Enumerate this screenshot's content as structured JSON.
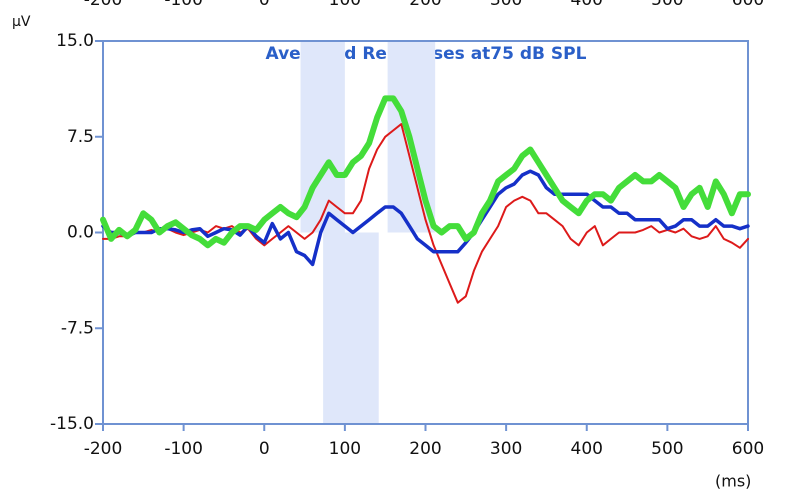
{
  "chart_data": {
    "type": "line",
    "title": "Averaged Responses at75 dB SPL",
    "y_unit": "μV",
    "x_unit": "(ms)",
    "x": [
      -200,
      -190,
      -180,
      -170,
      -160,
      -150,
      -140,
      -130,
      -120,
      -110,
      -100,
      -90,
      -80,
      -70,
      -60,
      -50,
      -40,
      -30,
      -20,
      -10,
      0,
      10,
      20,
      30,
      40,
      50,
      60,
      70,
      80,
      90,
      100,
      110,
      120,
      130,
      140,
      150,
      160,
      170,
      180,
      190,
      200,
      210,
      220,
      230,
      240,
      250,
      260,
      270,
      280,
      290,
      300,
      310,
      320,
      330,
      340,
      350,
      360,
      370,
      380,
      390,
      400,
      410,
      420,
      430,
      440,
      450,
      460,
      470,
      480,
      490,
      500,
      510,
      520,
      530,
      540,
      550,
      560,
      570,
      580,
      590,
      600
    ],
    "series": [
      {
        "color": "#dd1a1a",
        "width": 2,
        "values": [
          -0.5,
          -0.5,
          -0.3,
          -0.3,
          0,
          0,
          0.2,
          0,
          0.3,
          0,
          -0.2,
          0,
          0.2,
          0,
          0.5,
          0.3,
          0.5,
          0,
          0.3,
          -0.5,
          -1.0,
          -0.5,
          0,
          0.5,
          0,
          -0.5,
          0,
          1.0,
          2.5,
          2.0,
          1.5,
          1.5,
          2.5,
          5.0,
          6.5,
          7.5,
          8.0,
          8.5,
          6.0,
          3.5,
          1.0,
          -1.0,
          -2.5,
          -4.0,
          -5.5,
          -5.0,
          -3.0,
          -1.5,
          -0.5,
          0.5,
          2.0,
          2.5,
          2.8,
          2.5,
          1.5,
          1.5,
          1.0,
          0.5,
          -0.5,
          -1.0,
          0,
          0.5,
          -1.0,
          -0.5,
          0,
          0,
          0,
          0.2,
          0.5,
          0,
          0.2,
          0,
          0.3,
          -0.3,
          -0.5,
          -0.3,
          0.5,
          -0.5,
          -0.8,
          -1.2,
          -0.5
        ]
      },
      {
        "color": "#1530c8",
        "width": 3.5,
        "values": [
          0.5,
          0,
          0,
          -0.3,
          0,
          0,
          0,
          0.3,
          0.3,
          0.2,
          0,
          0.2,
          0.3,
          -0.3,
          0,
          0.3,
          0.2,
          -0.2,
          0.5,
          -0.3,
          -0.8,
          0.7,
          -0.5,
          0,
          -1.5,
          -1.8,
          -2.5,
          0,
          1.5,
          1.0,
          0.5,
          0,
          0.5,
          1.0,
          1.5,
          2.0,
          2.0,
          1.5,
          0.5,
          -0.5,
          -1.0,
          -1.5,
          -1.5,
          -1.5,
          -1.5,
          -0.8,
          0,
          1.0,
          2.0,
          3.0,
          3.5,
          3.8,
          4.5,
          4.8,
          4.5,
          3.5,
          3.0,
          3.0,
          3.0,
          3.0,
          3.0,
          2.5,
          2.0,
          2.0,
          1.5,
          1.5,
          1.0,
          1.0,
          1.0,
          1.0,
          0.3,
          0.5,
          1.0,
          1.0,
          0.5,
          0.5,
          1.0,
          0.5,
          0.5,
          0.3,
          0.5
        ]
      },
      {
        "color": "#44dd3a",
        "width": 6,
        "values": [
          1.0,
          -0.5,
          0.2,
          -0.3,
          0.2,
          1.5,
          1.0,
          0,
          0.5,
          0.8,
          0.3,
          -0.2,
          -0.5,
          -1.0,
          -0.5,
          -0.8,
          0,
          0.5,
          0.5,
          0.2,
          1.0,
          1.5,
          2.0,
          1.5,
          1.2,
          2.0,
          3.5,
          4.5,
          5.5,
          4.5,
          4.5,
          5.5,
          6.0,
          7.0,
          9.0,
          10.5,
          10.5,
          9.5,
          7.5,
          5.0,
          2.5,
          0.5,
          0,
          0.5,
          0.5,
          -0.5,
          0,
          1.5,
          2.5,
          4.0,
          4.5,
          5.0,
          6.0,
          6.5,
          5.5,
          4.5,
          3.5,
          2.5,
          2.0,
          1.5,
          2.5,
          3.0,
          3.0,
          2.5,
          3.5,
          4.0,
          4.5,
          4.0,
          4.0,
          4.5,
          4.0,
          3.5,
          2.0,
          3.0,
          3.5,
          2.0,
          4.0,
          3.0,
          1.5,
          3.0,
          3.0
        ]
      }
    ],
    "shaded_regions": [
      {
        "x": [
          45,
          100
        ],
        "y": [
          0,
          15
        ]
      },
      {
        "x": [
          153,
          212
        ],
        "y": [
          0,
          15
        ]
      },
      {
        "x": [
          73,
          142
        ],
        "y": [
          -15,
          0
        ]
      }
    ],
    "shade_color": "#dfe7fa",
    "xlim": [
      -200,
      600
    ],
    "ylim": [
      -15,
      15
    ],
    "xticks": [
      -200,
      -100,
      0,
      100,
      200,
      300,
      400,
      500,
      600
    ],
    "yticks": [
      {
        "value": -15,
        "label": "-15.0"
      },
      -7.5,
      {
        "value": 0,
        "label": "0.0"
      },
      7.5,
      {
        "value": 15,
        "label": "15.0"
      }
    ]
  }
}
